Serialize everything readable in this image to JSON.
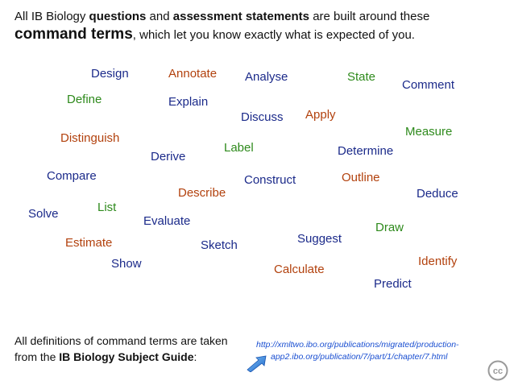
{
  "intro": {
    "p1": "All IB Biology ",
    "b1": "questions",
    "p2": " and ",
    "b2": "assessment statements",
    "p3": " are built around these",
    "b3": "command terms",
    "p4": ", which let you know exactly what is expected of you."
  },
  "terms": [
    {
      "text": "Design",
      "color": "blue"
    },
    {
      "text": "Annotate",
      "color": "orange"
    },
    {
      "text": "Analyse",
      "color": "blue"
    },
    {
      "text": "State",
      "color": "green"
    },
    {
      "text": "Comment",
      "color": "blue"
    },
    {
      "text": "Define",
      "color": "green"
    },
    {
      "text": "Explain",
      "color": "blue"
    },
    {
      "text": "Discuss",
      "color": "blue"
    },
    {
      "text": "Apply",
      "color": "orange"
    },
    {
      "text": "Measure",
      "color": "green"
    },
    {
      "text": "Distinguish",
      "color": "orange"
    },
    {
      "text": "Label",
      "color": "green"
    },
    {
      "text": "Determine",
      "color": "blue"
    },
    {
      "text": "Derive",
      "color": "blue"
    },
    {
      "text": "Compare",
      "color": "blue"
    },
    {
      "text": "Construct",
      "color": "blue"
    },
    {
      "text": "Outline",
      "color": "orange"
    },
    {
      "text": "Describe",
      "color": "orange"
    },
    {
      "text": "Deduce",
      "color": "blue"
    },
    {
      "text": "List",
      "color": "green"
    },
    {
      "text": "Solve",
      "color": "blue"
    },
    {
      "text": "Evaluate",
      "color": "blue"
    },
    {
      "text": "Draw",
      "color": "green"
    },
    {
      "text": "Suggest",
      "color": "blue"
    },
    {
      "text": "Estimate",
      "color": "orange"
    },
    {
      "text": "Sketch",
      "color": "blue"
    },
    {
      "text": "Identify",
      "color": "orange"
    },
    {
      "text": "Show",
      "color": "blue"
    },
    {
      "text": "Calculate",
      "color": "orange"
    },
    {
      "text": "Predict",
      "color": "blue"
    }
  ],
  "colors": {
    "blue": "#1b2a8a",
    "orange": "#b2410d",
    "green": "#2e8a1c",
    "link": "#1a4fd1",
    "arrow": "#2a7fd6"
  },
  "footer": {
    "line1": "All definitions of command terms are taken",
    "line2_prefix": "from the ",
    "line2_bold": "IB Biology Subject Guide",
    "line2_suffix": ":"
  },
  "link": {
    "line1": "http://xmltwo.ibo.org/publications/migrated/production-",
    "line2": "app2.ibo.org/publication/7/part/1/chapter/7.html"
  },
  "icons": {
    "arrow": "arrow-icon",
    "license": "cc-license-icon"
  },
  "license": {
    "badge": "cc"
  }
}
